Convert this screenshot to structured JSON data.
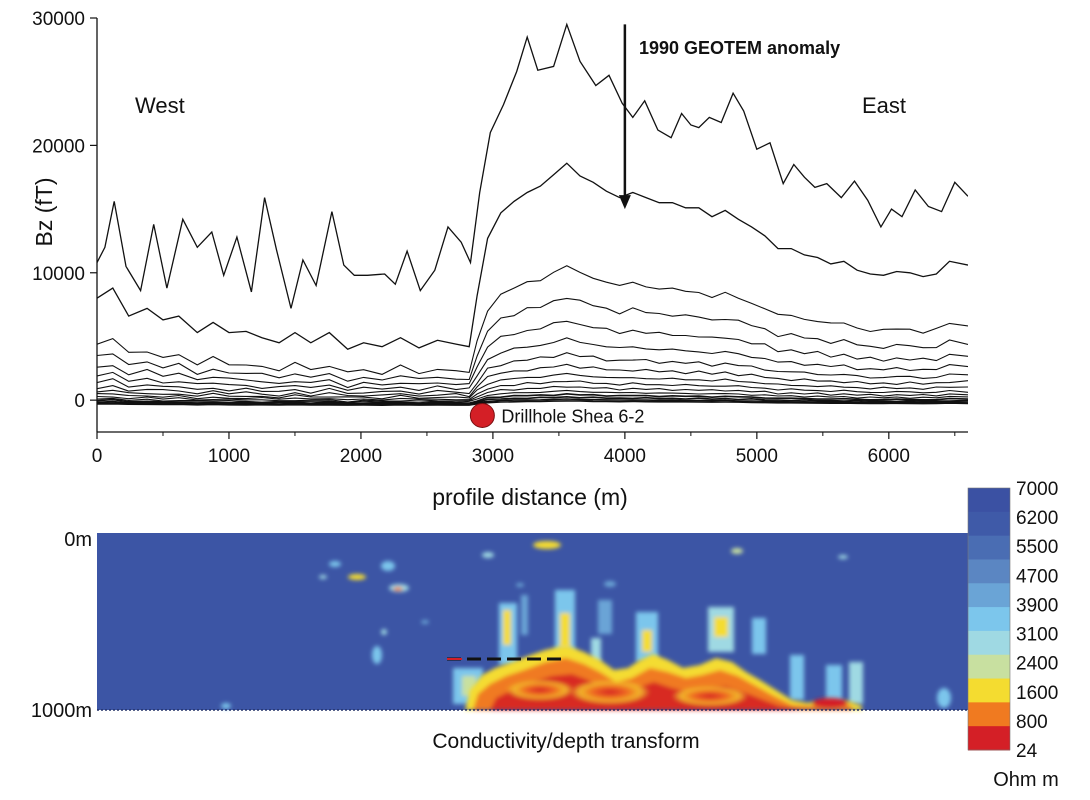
{
  "chart_data": [
    {
      "type": "line",
      "ylabel": "Bz (fT)",
      "xlabel": "profile distance (m)",
      "xlim": [
        0,
        6600
      ],
      "ylim": [
        -2500,
        30000
      ],
      "x_ticks": [
        0,
        1000,
        2000,
        3000,
        4000,
        5000,
        6000
      ],
      "y_ticks": [
        0,
        10000,
        20000,
        30000
      ],
      "grid": false,
      "annotations": {
        "west": "West",
        "east": "East",
        "anomaly": "1990 GEOTEM anomaly",
        "anomaly_x": 4000,
        "anomaly_y_top": 29500,
        "anomaly_y_bottom": 15000,
        "drillhole": "Drillhole Shea 6-2",
        "drillhole_x": 2920,
        "drillhole_y": -1200
      },
      "series": [
        {
          "values": [
            [
              0,
              10800
            ],
            [
              60,
              12000
            ],
            [
              130,
              15600
            ],
            [
              220,
              10500
            ],
            [
              330,
              8600
            ],
            [
              430,
              13800
            ],
            [
              530,
              8800
            ],
            [
              650,
              14200
            ],
            [
              760,
              12000
            ],
            [
              870,
              13200
            ],
            [
              960,
              9800
            ],
            [
              1060,
              12800
            ],
            [
              1170,
              8500
            ],
            [
              1270,
              15900
            ],
            [
              1360,
              11800
            ],
            [
              1470,
              7200
            ],
            [
              1560,
              11000
            ],
            [
              1660,
              9000
            ],
            [
              1780,
              14800
            ],
            [
              1870,
              10600
            ],
            [
              1950,
              9800
            ],
            [
              2050,
              9800
            ],
            [
              2180,
              9900
            ],
            [
              2260,
              9100
            ],
            [
              2350,
              11700
            ],
            [
              2450,
              8600
            ],
            [
              2560,
              10200
            ],
            [
              2660,
              13600
            ],
            [
              2760,
              12400
            ],
            [
              2830,
              10800
            ],
            [
              2900,
              16300
            ],
            [
              2980,
              21000
            ],
            [
              3080,
              23200
            ],
            [
              3180,
              25800
            ],
            [
              3260,
              28500
            ],
            [
              3340,
              25900
            ],
            [
              3460,
              26200
            ],
            [
              3560,
              29500
            ],
            [
              3660,
              26600
            ],
            [
              3780,
              24700
            ],
            [
              3880,
              25500
            ],
            [
              3980,
              23300
            ],
            [
              4060,
              22200
            ],
            [
              4150,
              23500
            ],
            [
              4250,
              21200
            ],
            [
              4350,
              20600
            ],
            [
              4430,
              22500
            ],
            [
              4500,
              21600
            ],
            [
              4560,
              21400
            ],
            [
              4640,
              22200
            ],
            [
              4730,
              21800
            ],
            [
              4820,
              24100
            ],
            [
              4900,
              22700
            ],
            [
              5000,
              19700
            ],
            [
              5100,
              20200
            ],
            [
              5200,
              17000
            ],
            [
              5280,
              18500
            ],
            [
              5360,
              17500
            ],
            [
              5440,
              16700
            ],
            [
              5530,
              17000
            ],
            [
              5640,
              15900
            ],
            [
              5740,
              17200
            ],
            [
              5840,
              15700
            ],
            [
              5940,
              13600
            ],
            [
              6020,
              15000
            ],
            [
              6100,
              14400
            ],
            [
              6200,
              16500
            ],
            [
              6300,
              15200
            ],
            [
              6400,
              14800
            ],
            [
              6500,
              17100
            ],
            [
              6600,
              16000
            ]
          ]
        },
        {
          "values": [
            [
              0,
              8000
            ],
            [
              120,
              8800
            ],
            [
              240,
              6600
            ],
            [
              380,
              7200
            ],
            [
              500,
              6300
            ],
            [
              620,
              6600
            ],
            [
              760,
              5300
            ],
            [
              880,
              6100
            ],
            [
              1000,
              5300
            ],
            [
              1130,
              5400
            ],
            [
              1250,
              4900
            ],
            [
              1380,
              4500
            ],
            [
              1500,
              5300
            ],
            [
              1620,
              4500
            ],
            [
              1760,
              5300
            ],
            [
              1900,
              4000
            ],
            [
              2020,
              4500
            ],
            [
              2160,
              4200
            ],
            [
              2300,
              4900
            ],
            [
              2440,
              4100
            ],
            [
              2580,
              4700
            ],
            [
              2720,
              4400
            ],
            [
              2820,
              4200
            ],
            [
              2880,
              8200
            ],
            [
              2960,
              12700
            ],
            [
              3060,
              14700
            ],
            [
              3160,
              15600
            ],
            [
              3260,
              16300
            ],
            [
              3360,
              16800
            ],
            [
              3460,
              17700
            ],
            [
              3560,
              18600
            ],
            [
              3660,
              17600
            ],
            [
              3760,
              17100
            ],
            [
              3860,
              16400
            ],
            [
              3960,
              15900
            ],
            [
              4060,
              16300
            ],
            [
              4160,
              15900
            ],
            [
              4260,
              15500
            ],
            [
              4360,
              15500
            ],
            [
              4460,
              15100
            ],
            [
              4560,
              15100
            ],
            [
              4660,
              14400
            ],
            [
              4760,
              14900
            ],
            [
              4860,
              14200
            ],
            [
              4960,
              13600
            ],
            [
              5060,
              12900
            ],
            [
              5160,
              11900
            ],
            [
              5260,
              11900
            ],
            [
              5360,
              11400
            ],
            [
              5460,
              11200
            ],
            [
              5560,
              10700
            ],
            [
              5660,
              10900
            ],
            [
              5760,
              10200
            ],
            [
              5860,
              9900
            ],
            [
              5960,
              9800
            ],
            [
              6060,
              10100
            ],
            [
              6160,
              10000
            ],
            [
              6260,
              9700
            ],
            [
              6360,
              9900
            ],
            [
              6460,
              10900
            ],
            [
              6600,
              10600
            ]
          ]
        }
      ]
    },
    {
      "type": "heatmap",
      "title": "Conductivity/depth transform",
      "y_ticks": [
        "0m",
        "1000m"
      ],
      "colorbar": {
        "labels": [
          "7000",
          "6200",
          "5500",
          "4700",
          "3900",
          "3100",
          "2400",
          "1600",
          "800",
          "24"
        ],
        "unit": "Ohm m",
        "colors": [
          "#3b51a3",
          "#3f5aa8",
          "#4a6db3",
          "#5b86c2",
          "#6aa4d6",
          "#7cc6ec",
          "#9fd9e3",
          "#c8e0a0",
          "#f4dc30",
          "#f07a20",
          "#d41f26"
        ]
      }
    }
  ]
}
